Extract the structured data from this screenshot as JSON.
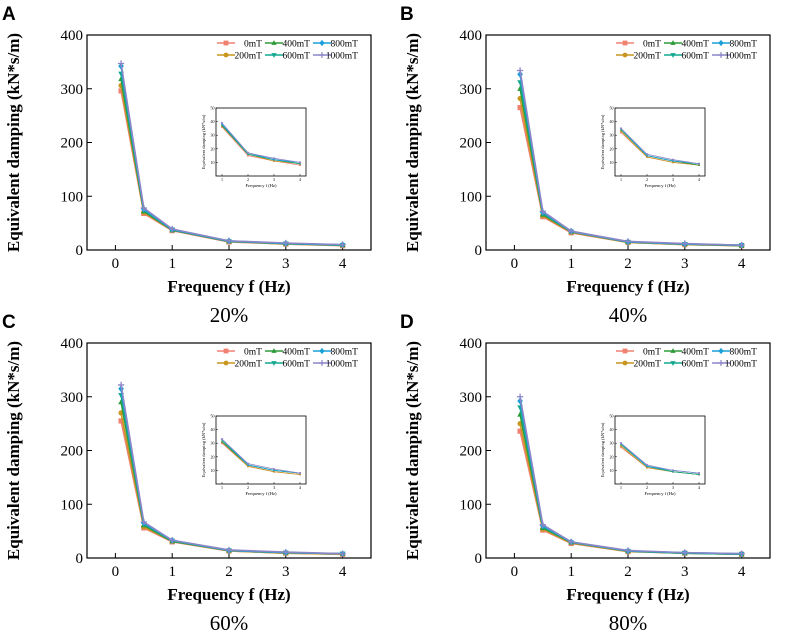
{
  "chart_data": [
    {
      "type": "line",
      "panel_label": "A",
      "caption": "20%",
      "xlabel": "Frequency f (Hz)",
      "ylabel": "Equivalent damping (kN*s/m)",
      "x": [
        0.1,
        0.5,
        1,
        2,
        3,
        4
      ],
      "xticks": [
        "0",
        "1",
        "2",
        "3",
        "4"
      ],
      "yticks": [
        "0",
        "100",
        "200",
        "300",
        "400"
      ],
      "xlim": [
        -0.5,
        4.5
      ],
      "ylim": [
        0,
        400
      ],
      "series": [
        {
          "name": "0mT",
          "values": [
            296,
            68,
            36,
            15,
            11,
            8
          ]
        },
        {
          "name": "200mT",
          "values": [
            306,
            70,
            37,
            16,
            11,
            9
          ]
        },
        {
          "name": "400mT",
          "values": [
            318,
            72,
            37,
            16,
            12,
            9
          ]
        },
        {
          "name": "600mT",
          "values": [
            328,
            74,
            38,
            16,
            12,
            9
          ]
        },
        {
          "name": "800mT",
          "values": [
            342,
            76,
            38,
            17,
            12,
            10
          ]
        },
        {
          "name": "1000mT",
          "values": [
            347,
            78,
            39,
            17,
            13,
            10
          ]
        }
      ],
      "legend": "top-right",
      "inset": {
        "xlabel": "Frequency f (Hz)",
        "ylabel": "Equivalent damping (kN*s/m)",
        "xticks": [
          "1",
          "2",
          "3",
          "4"
        ],
        "yticks": [
          "10",
          "20",
          "30",
          "40",
          "50"
        ],
        "x": [
          1,
          2,
          3,
          4
        ]
      }
    },
    {
      "type": "line",
      "panel_label": "B",
      "caption": "40%",
      "xlabel": "Frequency f (Hz)",
      "ylabel": "Equivalent damping (kN*s/m)",
      "x": [
        0.1,
        0.5,
        1,
        2,
        3,
        4
      ],
      "xticks": [
        "0",
        "1",
        "2",
        "3",
        "4"
      ],
      "yticks": [
        "0",
        "100",
        "200",
        "300",
        "400"
      ],
      "xlim": [
        -0.5,
        4.5
      ],
      "ylim": [
        0,
        400
      ],
      "series": [
        {
          "name": "0mT",
          "values": [
            265,
            62,
            32,
            14,
            10,
            8
          ]
        },
        {
          "name": "200mT",
          "values": [
            282,
            64,
            33,
            14,
            10,
            8
          ]
        },
        {
          "name": "400mT",
          "values": [
            300,
            66,
            34,
            15,
            11,
            8
          ]
        },
        {
          "name": "600mT",
          "values": [
            312,
            68,
            34,
            15,
            11,
            9
          ]
        },
        {
          "name": "800mT",
          "values": [
            327,
            70,
            35,
            15,
            11,
            9
          ]
        },
        {
          "name": "1000mT",
          "values": [
            334,
            72,
            35,
            16,
            12,
            9
          ]
        }
      ],
      "legend": "top-right",
      "inset": {
        "xlabel": "Frequency f (Hz)",
        "ylabel": "Equivalent damping (kN*s/m)",
        "xticks": [
          "1",
          "2",
          "3",
          "4"
        ],
        "yticks": [
          "10",
          "20",
          "30",
          "40",
          "50"
        ],
        "x": [
          1,
          2,
          3,
          4
        ]
      }
    },
    {
      "type": "line",
      "panel_label": "C",
      "caption": "60%",
      "xlabel": "Frequency f (Hz)",
      "ylabel": "Equivalent damping (kN*s/m)",
      "x": [
        0.1,
        0.5,
        1,
        2,
        3,
        4
      ],
      "xticks": [
        "0",
        "1",
        "2",
        "3",
        "4"
      ],
      "yticks": [
        "0",
        "100",
        "200",
        "300",
        "400"
      ],
      "xlim": [
        -0.5,
        4.5
      ],
      "ylim": [
        0,
        400
      ],
      "series": [
        {
          "name": "0mT",
          "values": [
            255,
            56,
            30,
            13,
            9,
            7
          ]
        },
        {
          "name": "200mT",
          "values": [
            270,
            58,
            31,
            13,
            9,
            7
          ]
        },
        {
          "name": "400mT",
          "values": [
            290,
            61,
            31,
            14,
            10,
            8
          ]
        },
        {
          "name": "600mT",
          "values": [
            303,
            63,
            32,
            14,
            10,
            8
          ]
        },
        {
          "name": "800mT",
          "values": [
            315,
            65,
            33,
            14,
            10,
            8
          ]
        },
        {
          "name": "1000mT",
          "values": [
            322,
            67,
            33,
            15,
            11,
            8
          ]
        }
      ],
      "legend": "top-right",
      "inset": {
        "xlabel": "Frequency f (Hz)",
        "ylabel": "Equivalent damping (kN*s/m)",
        "xticks": [
          "1",
          "2",
          "3",
          "4"
        ],
        "yticks": [
          "10",
          "20",
          "30",
          "40",
          "50"
        ],
        "x": [
          1,
          2,
          3,
          4
        ]
      }
    },
    {
      "type": "line",
      "panel_label": "D",
      "caption": "80%",
      "xlabel": "Frequency f (Hz)",
      "ylabel": "Equivalent damping (kN*s/m)",
      "x": [
        0.1,
        0.5,
        1,
        2,
        3,
        4
      ],
      "xticks": [
        "0",
        "1",
        "2",
        "3",
        "4"
      ],
      "yticks": [
        "0",
        "100",
        "200",
        "300",
        "400"
      ],
      "xlim": [
        -0.5,
        4.5
      ],
      "ylim": [
        0,
        400
      ],
      "series": [
        {
          "name": "0mT",
          "values": [
            236,
            52,
            27,
            12,
            9,
            7
          ]
        },
        {
          "name": "200mT",
          "values": [
            250,
            54,
            28,
            12,
            9,
            7
          ]
        },
        {
          "name": "400mT",
          "values": [
            267,
            56,
            29,
            13,
            9,
            7
          ]
        },
        {
          "name": "600mT",
          "values": [
            280,
            58,
            29,
            13,
            9,
            7
          ]
        },
        {
          "name": "800mT",
          "values": [
            292,
            60,
            30,
            13,
            10,
            8
          ]
        },
        {
          "name": "1000mT",
          "values": [
            300,
            62,
            30,
            14,
            10,
            8
          ]
        }
      ],
      "legend": "top-right",
      "inset": {
        "xlabel": "Frequency f (Hz)",
        "ylabel": "Equivalent damping (kN*s/m)",
        "xticks": [
          "1",
          "2",
          "3",
          "4"
        ],
        "yticks": [
          "10",
          "20",
          "30",
          "40",
          "50"
        ],
        "x": [
          1,
          2,
          3,
          4
        ]
      }
    }
  ],
  "series_colors": [
    "#f08070",
    "#c8961e",
    "#2e9b3a",
    "#14a890",
    "#1a9fd8",
    "#8c86c8"
  ],
  "series_markers": [
    "square",
    "circle",
    "triangle",
    "down-triangle",
    "diamond",
    "plus"
  ]
}
